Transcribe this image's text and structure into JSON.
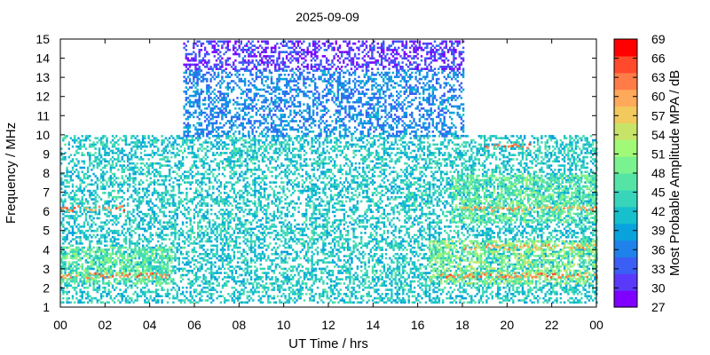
{
  "chart_data": {
    "type": "heatmap",
    "title": "2025-09-09",
    "xlabel": "UT Time / hrs",
    "ylabel": "Frequency / MHz",
    "colorbar_label": "Most Probable Amplitude MPA / dB",
    "xlim": [
      0,
      24
    ],
    "ylim": [
      1,
      15
    ],
    "x_ticks": [
      "00",
      "02",
      "04",
      "06",
      "08",
      "10",
      "12",
      "14",
      "16",
      "18",
      "20",
      "22",
      "00"
    ],
    "y_ticks": [
      "1",
      "2",
      "3",
      "4",
      "5",
      "6",
      "7",
      "8",
      "9",
      "10",
      "11",
      "12",
      "13",
      "14",
      "15"
    ],
    "colorbar_ticks": [
      "27",
      "30",
      "33",
      "36",
      "39",
      "42",
      "45",
      "48",
      "51",
      "54",
      "57",
      "60",
      "63",
      "66",
      "69"
    ],
    "colorbar_range": [
      27,
      69
    ],
    "colorbar_colors": [
      "#7f00ff",
      "#5a39fb",
      "#3b5ef5",
      "#1e82ea",
      "#08a3dd",
      "#16c0cc",
      "#38d5ba",
      "#55e4a6",
      "#79f28f",
      "#a1f978",
      "#c8e468",
      "#f2c95c",
      "#ffa95a",
      "#ff7c48",
      "#ff4a2c",
      "#ff0000"
    ],
    "regions": [
      {
        "t0": 0.0,
        "t1": 24.0,
        "f0": 1.3,
        "f1": 10.0,
        "mpa": 42
      },
      {
        "t0": 5.5,
        "t1": 18.0,
        "f0": 10.0,
        "f1": 13.5,
        "mpa": 36
      },
      {
        "t0": 5.5,
        "t1": 18.0,
        "f0": 13.5,
        "f1": 15.0,
        "mpa": 30
      },
      {
        "t0": 0.0,
        "t1": 5.0,
        "f0": 2.3,
        "f1": 4.2,
        "mpa": 48
      },
      {
        "t0": 16.5,
        "t1": 24.0,
        "f0": 2.3,
        "f1": 4.5,
        "mpa": 51
      },
      {
        "t0": 17.5,
        "t1": 24.0,
        "f0": 5.5,
        "f1": 8.0,
        "mpa": 48
      }
    ],
    "hot_bands": [
      {
        "t0": 0.0,
        "t1": 5.0,
        "f": 2.7,
        "mpa": 63
      },
      {
        "t0": 0.0,
        "t1": 3.0,
        "f": 6.2,
        "mpa": 63
      },
      {
        "t0": 17.0,
        "t1": 24.0,
        "f": 2.7,
        "mpa": 63
      },
      {
        "t0": 18.0,
        "t1": 24.0,
        "f": 4.2,
        "mpa": 60
      },
      {
        "t0": 18.0,
        "t1": 24.0,
        "f": 6.2,
        "mpa": 60
      },
      {
        "t0": 19.0,
        "t1": 21.0,
        "f": 9.5,
        "mpa": 63
      }
    ]
  }
}
